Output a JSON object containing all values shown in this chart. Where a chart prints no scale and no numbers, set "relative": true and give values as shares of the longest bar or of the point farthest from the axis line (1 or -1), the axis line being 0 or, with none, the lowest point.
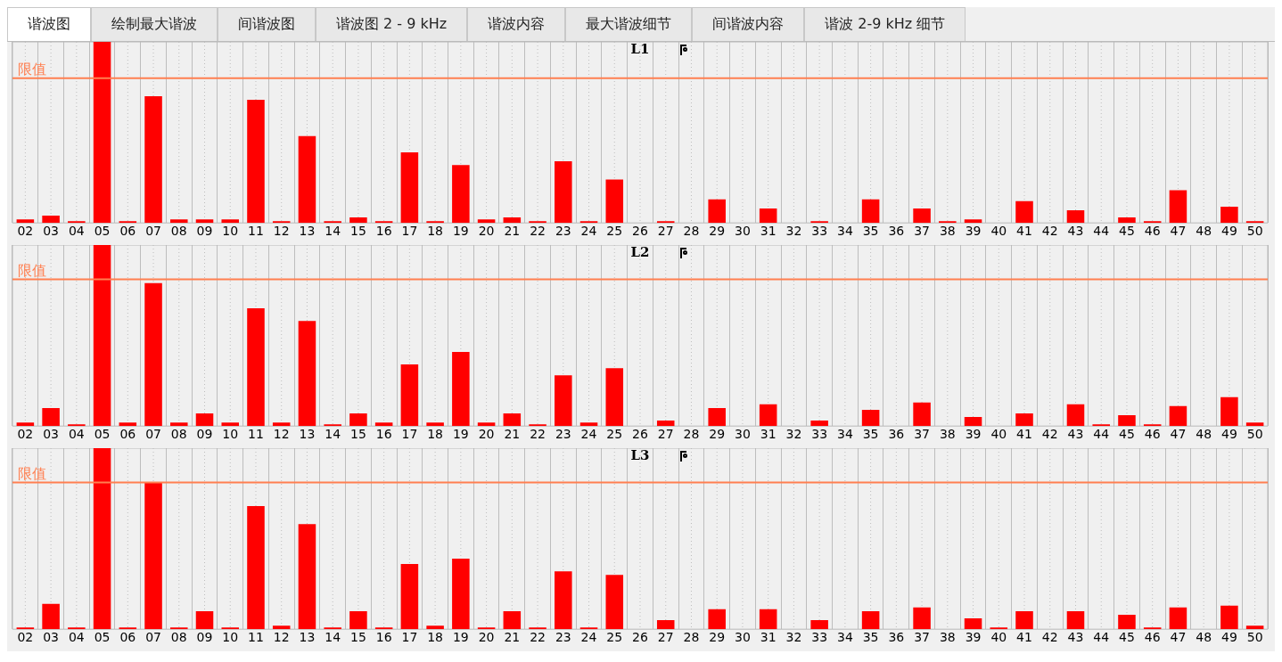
{
  "chart_data": [
    {
      "type": "other",
      "annotations": [
        "谐波图",
        "绘制最大谐波",
        "间谐波图",
        "谐波图 2 - 9 kHz",
        "谐波内容",
        "最大谐波细节",
        "间谐波内容",
        "谐波 2-9 kHz 细节"
      ]
    },
    {
      "type": "bar",
      "title": "L1",
      "relative": true,
      "grid": "x",
      "color": "#ff0000",
      "categories": [
        "02",
        "03",
        "04",
        "05",
        "06",
        "07",
        "08",
        "09",
        "10",
        "11",
        "12",
        "13",
        "14",
        "15",
        "16",
        "17",
        "18",
        "19",
        "20",
        "21",
        "22",
        "23",
        "24",
        "25",
        "26",
        "27",
        "28",
        "29",
        "30",
        "31",
        "32",
        "33",
        "34",
        "35",
        "36",
        "37",
        "38",
        "39",
        "40",
        "41",
        "42",
        "43",
        "44",
        "45",
        "46",
        "47",
        "48",
        "49",
        "50"
      ],
      "values": [
        0.02,
        0.04,
        0.01,
        1,
        0.01,
        0.7,
        0.02,
        0.02,
        0.02,
        0.68,
        0.01,
        0.48,
        0.01,
        0.03,
        0.01,
        0.39,
        0.01,
        0.32,
        0.02,
        0.03,
        0.01,
        0.34,
        0.01,
        0.24,
        0,
        0.01,
        0,
        0.13,
        0,
        0.08,
        0,
        0.01,
        0,
        0.13,
        0,
        0.08,
        0.01,
        0.02,
        0,
        0.12,
        0,
        0.07,
        0,
        0.03,
        0.01,
        0.18,
        0,
        0.09,
        0.01
      ],
      "ref_lines": [
        {
          "axis": "y",
          "value": 0.8,
          "label": "限值",
          "color": "#ff7f50"
        }
      ]
    },
    {
      "type": "bar",
      "title": "L2",
      "relative": true,
      "grid": "x",
      "color": "#ff0000",
      "categories": [
        "02",
        "03",
        "04",
        "05",
        "06",
        "07",
        "08",
        "09",
        "10",
        "11",
        "12",
        "13",
        "14",
        "15",
        "16",
        "17",
        "18",
        "19",
        "20",
        "21",
        "22",
        "23",
        "24",
        "25",
        "26",
        "27",
        "28",
        "29",
        "30",
        "31",
        "32",
        "33",
        "34",
        "35",
        "36",
        "37",
        "38",
        "39",
        "40",
        "41",
        "42",
        "43",
        "44",
        "45",
        "46",
        "47",
        "48",
        "49",
        "50"
      ],
      "values": [
        0.02,
        0.1,
        0.01,
        1,
        0.02,
        0.79,
        0.02,
        0.07,
        0.02,
        0.65,
        0.02,
        0.58,
        0.01,
        0.07,
        0.02,
        0.34,
        0.02,
        0.41,
        0.02,
        0.07,
        0.01,
        0.28,
        0.02,
        0.32,
        0,
        0.03,
        0,
        0.1,
        0,
        0.12,
        0,
        0.03,
        0,
        0.09,
        0,
        0.13,
        0,
        0.05,
        0,
        0.07,
        0,
        0.12,
        0.01,
        0.06,
        0.01,
        0.11,
        0,
        0.16,
        0.02
      ],
      "ref_lines": [
        {
          "axis": "y",
          "value": 0.81,
          "label": "限值",
          "color": "#ff7f50"
        }
      ]
    },
    {
      "type": "bar",
      "title": "L3",
      "relative": true,
      "grid": "x",
      "color": "#ff0000",
      "categories": [
        "02",
        "03",
        "04",
        "05",
        "06",
        "07",
        "08",
        "09",
        "10",
        "11",
        "12",
        "13",
        "14",
        "15",
        "16",
        "17",
        "18",
        "19",
        "20",
        "21",
        "22",
        "23",
        "24",
        "25",
        "26",
        "27",
        "28",
        "29",
        "30",
        "31",
        "32",
        "33",
        "34",
        "35",
        "36",
        "37",
        "38",
        "39",
        "40",
        "41",
        "42",
        "43",
        "44",
        "45",
        "46",
        "47",
        "48",
        "49",
        "50"
      ],
      "values": [
        0.01,
        0.14,
        0.01,
        1,
        0.01,
        0.81,
        0.01,
        0.1,
        0.01,
        0.68,
        0.02,
        0.58,
        0.01,
        0.1,
        0.01,
        0.36,
        0.02,
        0.39,
        0.01,
        0.1,
        0.01,
        0.32,
        0.01,
        0.3,
        0,
        0.05,
        0,
        0.11,
        0,
        0.11,
        0,
        0.05,
        0,
        0.1,
        0,
        0.12,
        0,
        0.06,
        0.01,
        0.1,
        0,
        0.1,
        0,
        0.08,
        0.01,
        0.12,
        0,
        0.13,
        0.02
      ],
      "ref_lines": [
        {
          "axis": "y",
          "value": 0.81,
          "label": "限值",
          "color": "#ff7f50"
        }
      ]
    }
  ]
}
